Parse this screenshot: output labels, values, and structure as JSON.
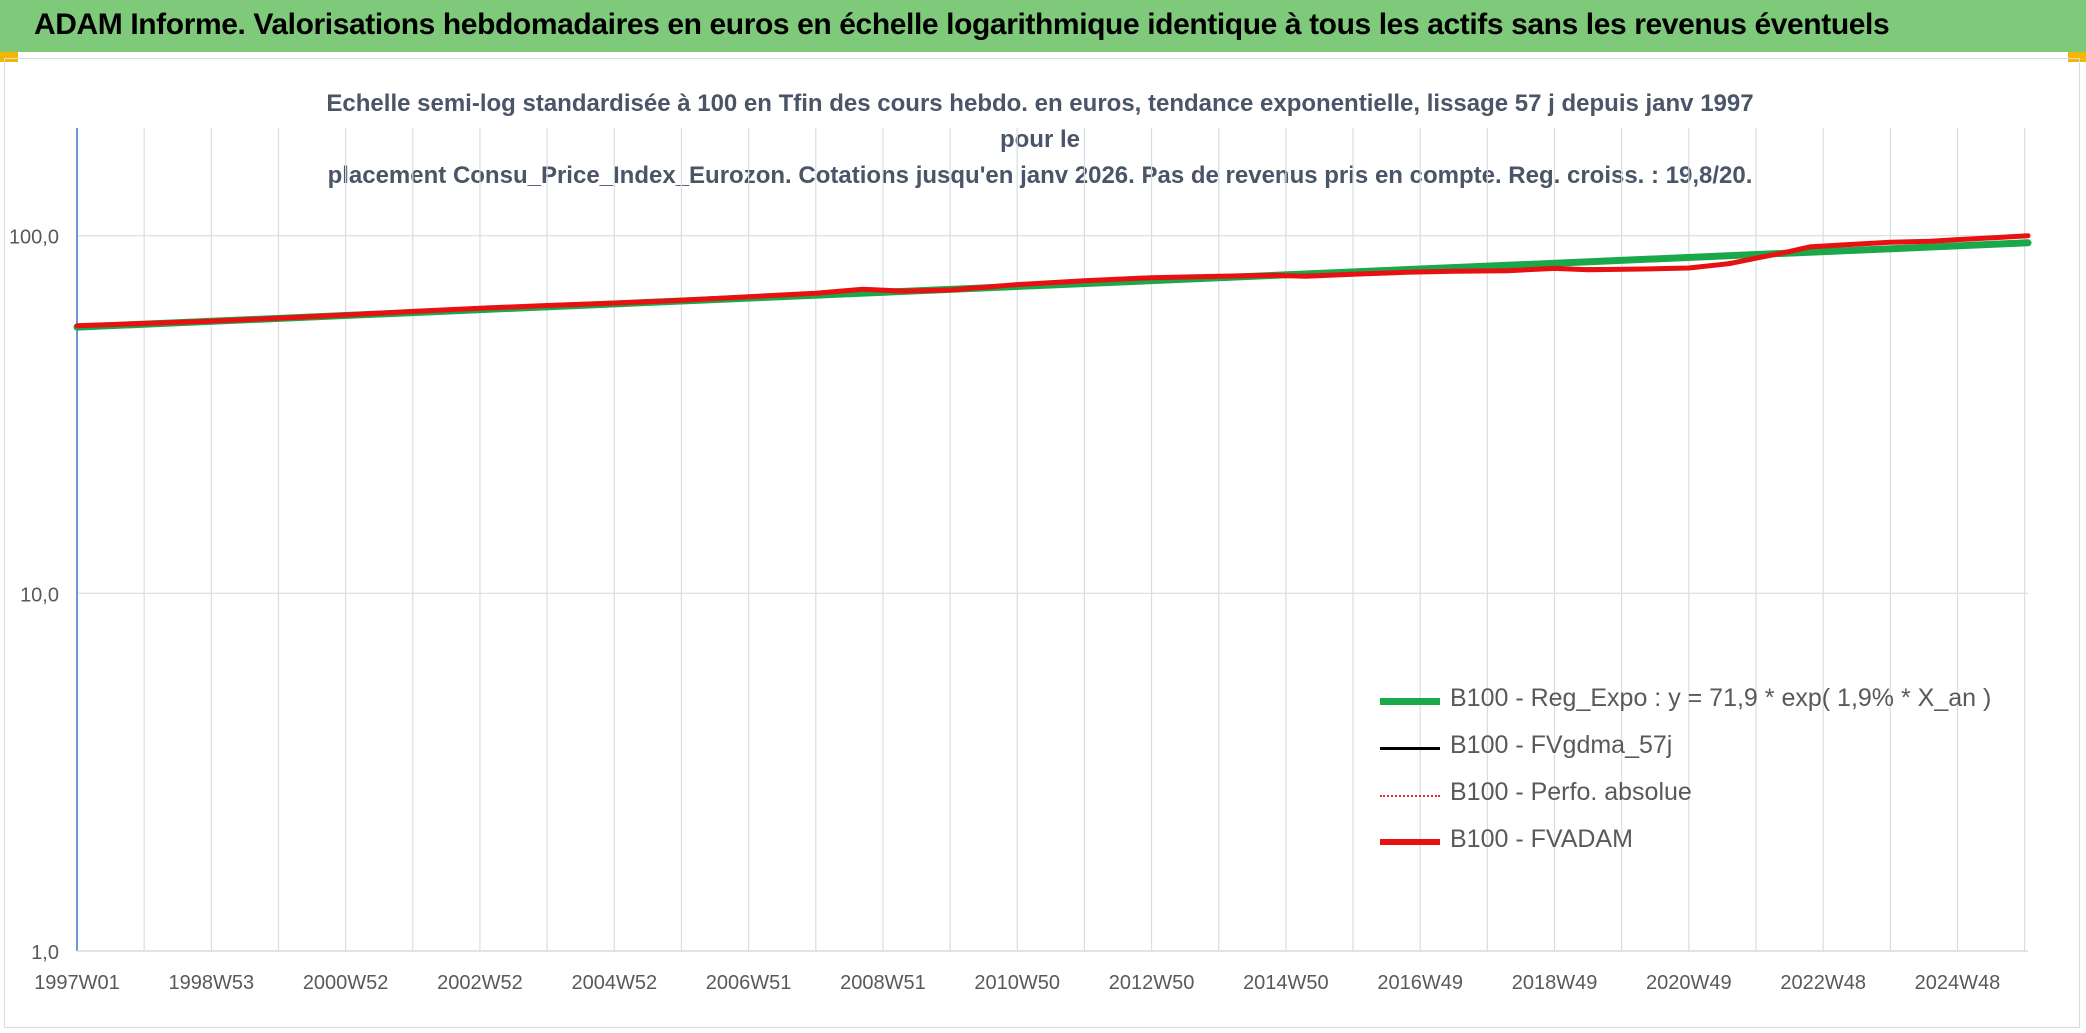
{
  "header": {
    "title": "ADAM Informe. Valorisations hebdomadaires en euros en échelle logarithmique identique à tous les actifs sans les revenus éventuels"
  },
  "colors": {
    "header_bg": "#7fc97a",
    "reg_expo": "#1aa84a",
    "fvgdma": "#000000",
    "perfo": "#e03030",
    "fvadam": "#e81010"
  },
  "chart_data": {
    "type": "line",
    "title": "Echelle semi-log standardisée à 100 en Tfin des cours hebdo. en euros, tendance exponentielle, lissage 57 j depuis janv 1997 pour le placement Consu_Price_Index_Eurozon. Cotations jusqu'en janv 2026. Pas de revenus pris en compte. Reg. croiss. : 19,8/20.",
    "title_lines": [
      "Echelle semi-log standardisée à 100 en Tfin des cours hebdo. en euros, tendance exponentielle, lissage 57 j depuis janv 1997 pour le",
      "placement Consu_Price_Index_Eurozon. Cotations jusqu'en janv 2026. Pas de revenus pris en compte. Reg. croiss. : 19,8/20."
    ],
    "y_scale": "log",
    "ylim": [
      1,
      200
    ],
    "y_ticks": [
      {
        "value": 1,
        "label": "1,0"
      },
      {
        "value": 10,
        "label": "10,0"
      },
      {
        "value": 100,
        "label": "100,0"
      }
    ],
    "xlim": [
      1997.0,
      2026.05
    ],
    "x_ticks": [
      {
        "value": 1997.0,
        "label": "1997W01"
      },
      {
        "value": 1999.0,
        "label": "1998W53"
      },
      {
        "value": 2001.0,
        "label": "2000W52"
      },
      {
        "value": 2003.0,
        "label": "2002W52"
      },
      {
        "value": 2005.0,
        "label": "2004W52"
      },
      {
        "value": 2007.0,
        "label": "2006W51"
      },
      {
        "value": 2009.0,
        "label": "2008W51"
      },
      {
        "value": 2011.0,
        "label": "2010W50"
      },
      {
        "value": 2013.0,
        "label": "2012W50"
      },
      {
        "value": 2015.0,
        "label": "2014W50"
      },
      {
        "value": 2017.0,
        "label": "2016W49"
      },
      {
        "value": 2019.0,
        "label": "2018W49"
      },
      {
        "value": 2021.0,
        "label": "2020W49"
      },
      {
        "value": 2023.0,
        "label": "2022W48"
      },
      {
        "value": 2025.0,
        "label": "2024W48"
      }
    ],
    "grid": true,
    "legend_position": "bottom-right",
    "series": [
      {
        "name": "B100 - Reg_Expo : y = 71,9 * exp( 1,9% *  X_an )",
        "style": "solid-thick",
        "x": [
          1997.0,
          2026.05
        ],
        "y": [
          55.5,
          95.5
        ]
      },
      {
        "name": "B100 - FVgdma_57j",
        "style": "solid",
        "x": [
          1997.0,
          1999.0,
          2001.0,
          2003.0,
          2005.0,
          2007.0,
          2008.7,
          2009.5,
          2011.0,
          2013.0,
          2015.0,
          2017.0,
          2019.0,
          2021.0,
          2022.0,
          2023.0,
          2025.0,
          2026.05
        ],
        "y": [
          56.0,
          57.7,
          60.0,
          62.7,
          64.8,
          67.5,
          70.8,
          70.0,
          73.0,
          76.3,
          77.5,
          79.0,
          81.0,
          81.2,
          86.5,
          94.0,
          97.5,
          100.0
        ]
      },
      {
        "name": "B100 - Perfo. absolue",
        "style": "dotted",
        "x": [
          1997.0,
          1999.0,
          2001.0,
          2003.0,
          2005.0,
          2007.0,
          2008.7,
          2009.5,
          2011.0,
          2013.0,
          2015.0,
          2017.0,
          2019.0,
          2021.0,
          2022.0,
          2023.0,
          2025.0,
          2026.05
        ],
        "y": [
          56.0,
          57.7,
          60.0,
          62.7,
          64.8,
          67.5,
          70.8,
          70.0,
          73.0,
          76.3,
          77.5,
          79.0,
          81.0,
          81.2,
          86.5,
          94.0,
          97.5,
          100.0
        ]
      },
      {
        "name": "B100 - FVADAM",
        "style": "solid-thick",
        "x": [
          1997.0,
          1998.0,
          1999.0,
          2000.0,
          2001.0,
          2002.0,
          2003.0,
          2004.0,
          2005.0,
          2006.0,
          2007.0,
          2008.0,
          2008.7,
          2009.3,
          2010.0,
          2011.0,
          2012.0,
          2013.0,
          2014.0,
          2014.8,
          2015.3,
          2016.0,
          2016.8,
          2017.5,
          2018.3,
          2019.0,
          2019.5,
          2020.5,
          2021.0,
          2021.6,
          2022.0,
          2022.4,
          2022.8,
          2023.4,
          2024.0,
          2024.6,
          2025.0,
          2025.6,
          2026.05
        ],
        "y": [
          56.0,
          56.8,
          57.7,
          58.8,
          60.0,
          61.4,
          62.7,
          63.8,
          64.8,
          66.0,
          67.5,
          69.0,
          70.8,
          70.0,
          70.5,
          73.0,
          74.8,
          76.3,
          77.0,
          77.5,
          77.0,
          78.0,
          79.0,
          79.5,
          79.8,
          81.0,
          80.3,
          80.8,
          81.2,
          83.5,
          86.5,
          89.5,
          93.0,
          94.5,
          95.8,
          96.5,
          97.5,
          98.8,
          100.0
        ]
      }
    ]
  }
}
